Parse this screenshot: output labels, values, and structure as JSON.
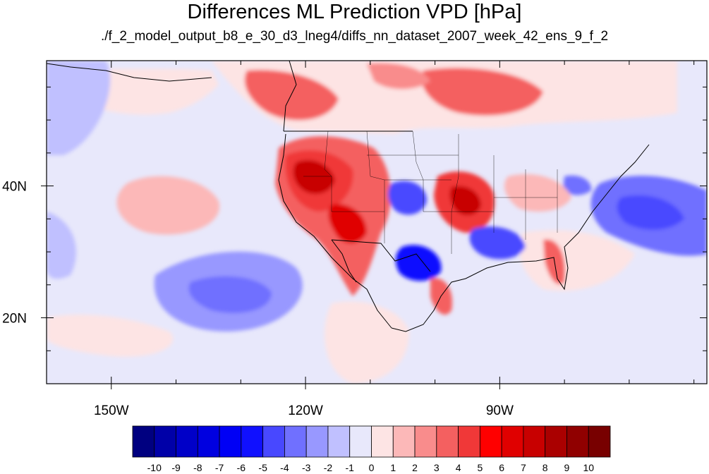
{
  "title": "Differences ML Prediction VPD [hPa]",
  "subtitle": "./f_2_model_output_b8_e_30_d3_lneg4/diffs_nn_dataset_2007_week_42_ens_9_f_2",
  "map": {
    "lon_range": [
      -160,
      -58
    ],
    "lat_range": [
      10,
      59
    ],
    "lon_ticks": [
      {
        "value": -150,
        "label": "150W"
      },
      {
        "value": -120,
        "label": "120W"
      },
      {
        "value": -90,
        "label": "90W"
      }
    ],
    "lat_ticks": [
      {
        "value": 40,
        "label": "40N"
      },
      {
        "value": 20,
        "label": "20N"
      }
    ]
  },
  "colorbar": {
    "levels": [
      "-10",
      "-9",
      "-8",
      "-7",
      "-6",
      "-5",
      "-4",
      "-3",
      "-2",
      "-1",
      "0",
      "1",
      "2",
      "3",
      "4",
      "5",
      "6",
      "7",
      "8",
      "9",
      "10"
    ],
    "colors": [
      "#000080",
      "#0000a8",
      "#0000c8",
      "#0000e0",
      "#0000f5",
      "#1010ff",
      "#4848ff",
      "#7070ff",
      "#9898ff",
      "#c0c0ff",
      "#e8e8fb",
      "#fde4e4",
      "#fcb8b8",
      "#f98c8c",
      "#f46060",
      "#f03838",
      "#ff0000",
      "#e00000",
      "#c80000",
      "#aa0000",
      "#900000",
      "#780000"
    ]
  }
}
